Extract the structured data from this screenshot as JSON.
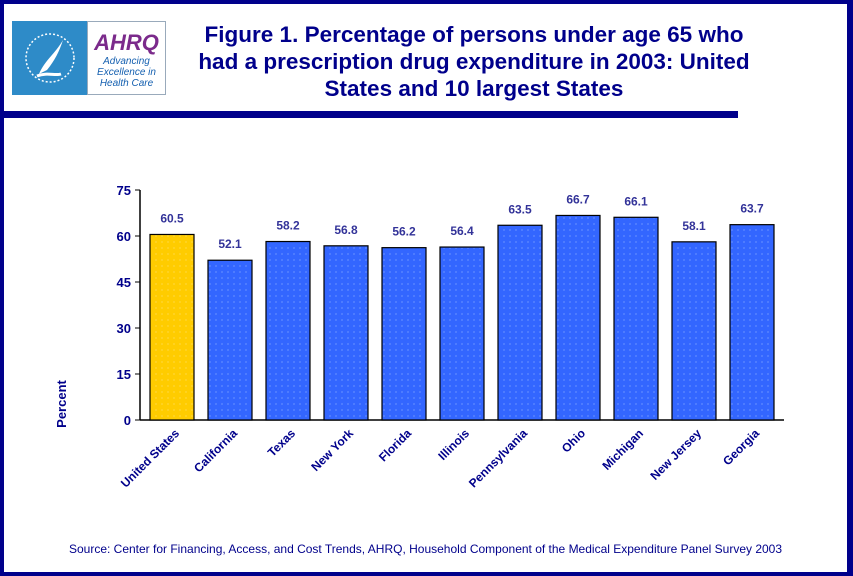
{
  "logo": {
    "org": "AHRQ",
    "tagline": "Advancing Excellence in Health Care"
  },
  "title": "Figure 1. Percentage of persons under age 65 who had a prescription drug expenditure in 2003: United States and 10 largest States",
  "source": "Source: Center for Financing, Access, and Cost Trends, AHRQ, Household Component of the Medical Expenditure Panel Survey 2003",
  "colors": {
    "highlight": "#FFCC00",
    "bar": "#3366FF",
    "text": "#00008B"
  },
  "chart_data": {
    "type": "bar",
    "title": "",
    "xlabel": "",
    "ylabel": "Percent",
    "ylim": [
      0,
      75
    ],
    "yticks": [
      0,
      15,
      30,
      45,
      60,
      75
    ],
    "grid": false,
    "categories": [
      "United States",
      "California",
      "Texas",
      "New York",
      "Florida",
      "Illinois",
      "Pennsylvania",
      "Ohio",
      "Michigan",
      "New Jersey",
      "Georgia"
    ],
    "values": [
      60.5,
      52.1,
      58.2,
      56.8,
      56.2,
      56.4,
      63.5,
      66.7,
      66.1,
      58.1,
      63.7
    ],
    "data_labels": [
      "60.5",
      "52.1",
      "58.2",
      "56.8",
      "56.2",
      "56.4",
      "63.5",
      "66.7",
      "66.1",
      "58.1",
      "63.7"
    ]
  }
}
